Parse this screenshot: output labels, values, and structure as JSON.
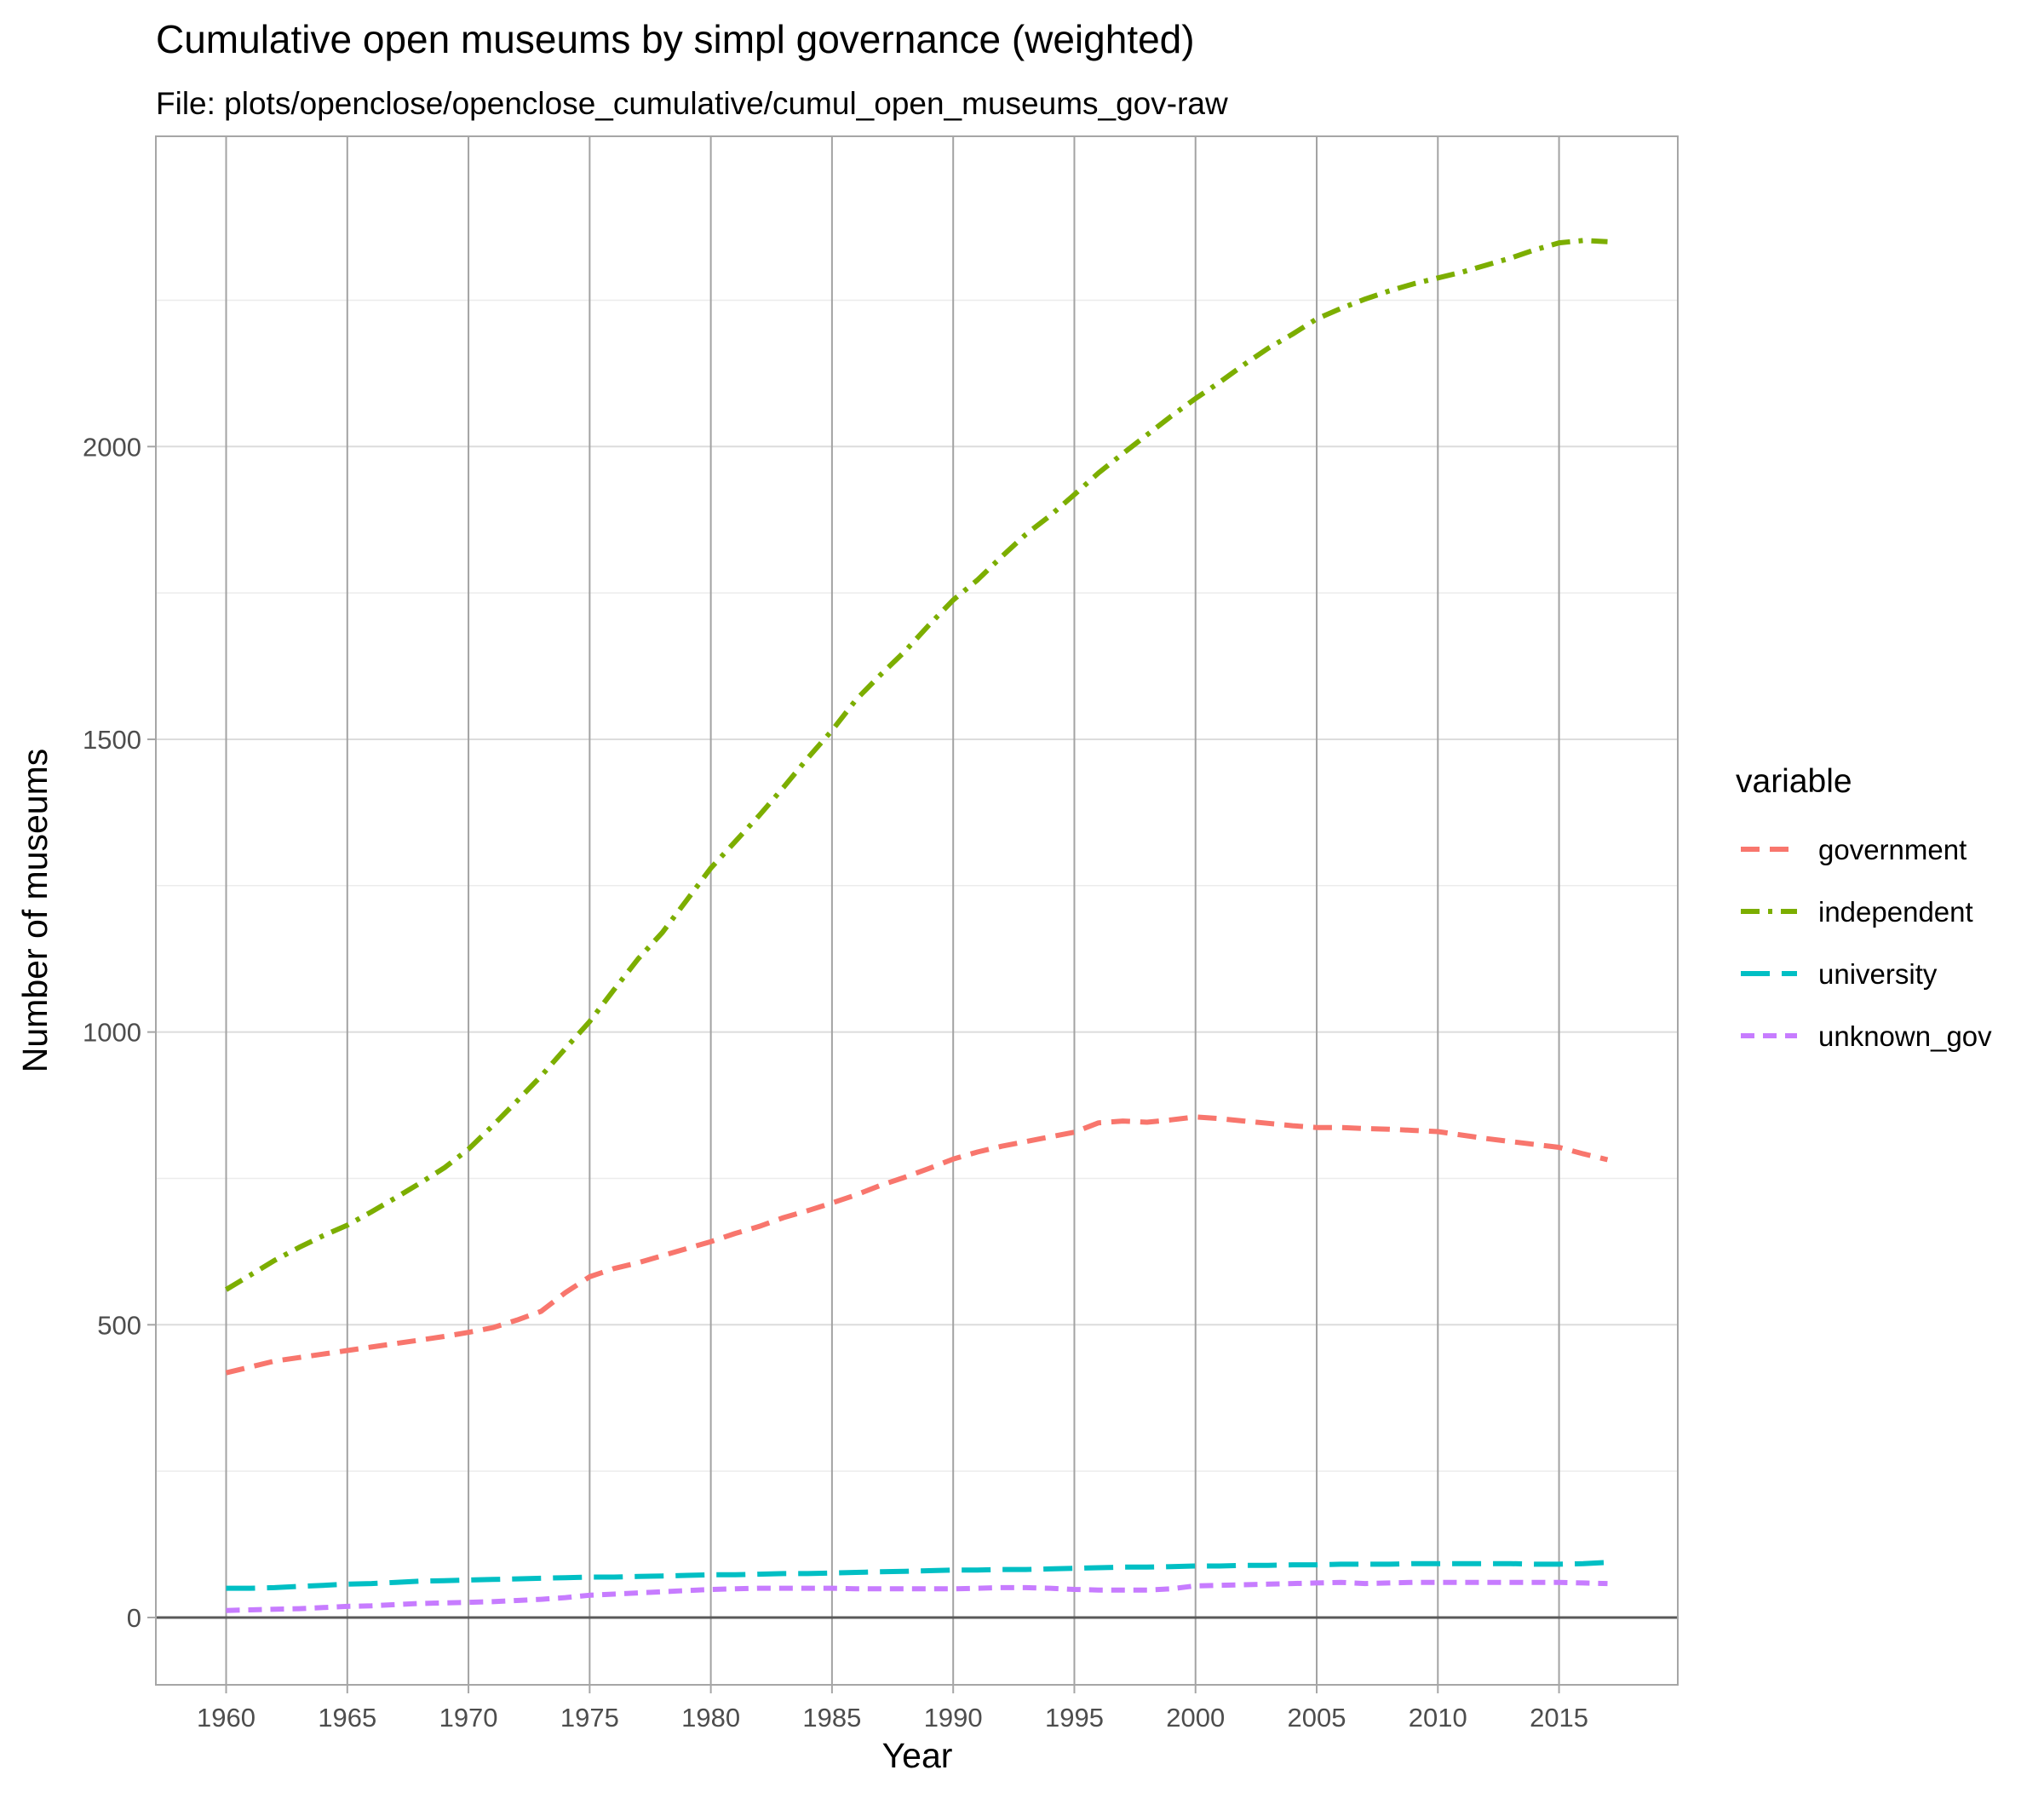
{
  "chart_data": {
    "type": "line",
    "title": "Cumulative open museums by simpl governance (weighted)",
    "subtitle": "File: plots/openclose/openclose_cumulative/cumul_open_museums_gov-raw",
    "xlabel": "Year",
    "ylabel": "Number of museums",
    "xlim": [
      1957.1,
      2019.9
    ],
    "ylim": [
      -115,
      2530
    ],
    "x_ticks": [
      1960,
      1965,
      1970,
      1975,
      1980,
      1985,
      1990,
      1995,
      2000,
      2005,
      2010,
      2015
    ],
    "x_tick_labels": [
      "1960",
      "1965",
      "1970",
      "1975",
      "1980",
      "1985",
      "1990",
      "1995",
      "2000",
      "2005",
      "2010",
      "2015"
    ],
    "y_ticks": [
      0,
      500,
      1000,
      1500,
      2000
    ],
    "y_tick_labels": [
      "0",
      "500",
      "1000",
      "1500",
      "2000"
    ],
    "y_minor_gridlines": [
      250,
      750,
      1250,
      1750,
      2250
    ],
    "grid": true,
    "zero_line": true,
    "legend": {
      "title": "variable",
      "position": "right"
    },
    "x": [
      1960,
      1961,
      1962,
      1963,
      1964,
      1965,
      1966,
      1967,
      1968,
      1969,
      1970,
      1971,
      1972,
      1973,
      1974,
      1975,
      1976,
      1977,
      1978,
      1979,
      1980,
      1981,
      1982,
      1983,
      1984,
      1985,
      1986,
      1987,
      1988,
      1989,
      1990,
      1991,
      1992,
      1993,
      1994,
      1995,
      1996,
      1997,
      1998,
      1999,
      2000,
      2001,
      2002,
      2003,
      2004,
      2005,
      2006,
      2007,
      2008,
      2009,
      2010,
      2011,
      2012,
      2013,
      2014,
      2015,
      2016,
      2017
    ],
    "series": [
      {
        "name": "government",
        "color": "#F8766D",
        "dash": "22 12",
        "values": [
          418,
          428,
          438,
          444,
          450,
          456,
          462,
          468,
          474,
          480,
          487,
          495,
          508,
          523,
          555,
          582,
          596,
          606,
          618,
          630,
          642,
          656,
          668,
          683,
          695,
          708,
          722,
          738,
          752,
          767,
          783,
          795,
          805,
          813,
          821,
          829,
          845,
          848,
          846,
          850,
          855,
          852,
          848,
          844,
          840,
          837,
          837,
          835,
          834,
          832,
          830,
          824,
          818,
          813,
          808,
          803,
          792,
          782
        ]
      },
      {
        "name": "independent",
        "color": "#7CAE00",
        "dash": "22 10 5 10",
        "values": [
          560,
          585,
          610,
          632,
          652,
          670,
          693,
          717,
          742,
          768,
          800,
          840,
          882,
          925,
          972,
          1018,
          1072,
          1125,
          1170,
          1225,
          1280,
          1325,
          1370,
          1418,
          1468,
          1515,
          1568,
          1610,
          1650,
          1695,
          1738,
          1772,
          1812,
          1850,
          1882,
          1918,
          1955,
          1988,
          2020,
          2052,
          2082,
          2110,
          2140,
          2168,
          2192,
          2218,
          2236,
          2252,
          2266,
          2278,
          2288,
          2298,
          2310,
          2322,
          2336,
          2348,
          2352,
          2350
        ]
      },
      {
        "name": "university",
        "color": "#00BFC4",
        "dash": "34 14",
        "values": [
          50,
          50,
          51,
          53,
          55,
          57,
          58,
          60,
          62,
          63,
          64,
          65,
          66,
          67,
          68,
          69,
          69,
          70,
          71,
          72,
          73,
          73,
          74,
          75,
          75,
          76,
          77,
          78,
          79,
          80,
          81,
          81,
          82,
          82,
          83,
          84,
          85,
          86,
          86,
          87,
          88,
          88,
          89,
          89,
          90,
          90,
          91,
          91,
          91,
          92,
          92,
          92,
          92,
          92,
          91,
          91,
          92,
          94
        ]
      },
      {
        "name": "unknown_gov",
        "color": "#C77CFF",
        "dash": "16 10",
        "values": [
          12,
          13,
          14,
          15,
          17,
          19,
          20,
          22,
          24,
          25,
          26,
          27,
          29,
          31,
          34,
          38,
          40,
          42,
          44,
          46,
          48,
          49,
          50,
          50,
          50,
          50,
          49,
          49,
          49,
          49,
          49,
          50,
          51,
          51,
          50,
          48,
          47,
          47,
          47,
          49,
          54,
          55,
          56,
          57,
          58,
          59,
          60,
          58,
          59,
          60,
          60,
          60,
          60,
          60,
          60,
          60,
          59,
          58
        ]
      }
    ]
  }
}
